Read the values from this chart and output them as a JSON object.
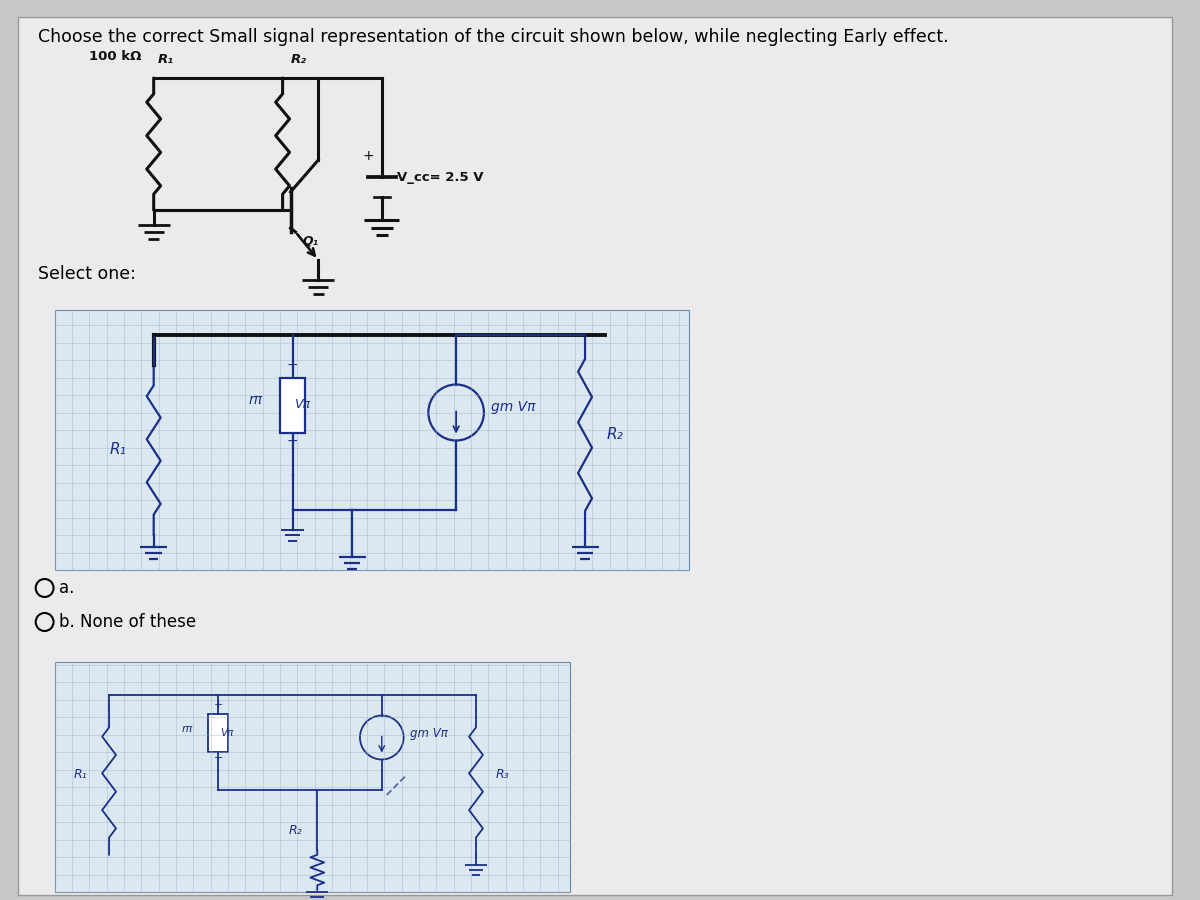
{
  "title": "Choose the correct Small signal representation of the circuit shown below, while neglecting Early effect.",
  "bg_color": "#c8c8c8",
  "panel_color": "#e8e8e8",
  "text_color": "#000000",
  "select_one": "Select one:",
  "option_a_label": "a.",
  "option_b_label": "b. None of these",
  "vcc_label": "V_cc= 2.5 V",
  "r1_label": "R₁",
  "r2_label": "R₂",
  "r1_val": "100 kΩ",
  "q1_label": "Q₁",
  "circuit_color": "#111111",
  "grid_color": "#9bb0cc",
  "grid_bg": "#dce8f0",
  "sketch_color": "#1a2f88",
  "sketch_lw": 1.6,
  "top_circuit_color": "#111111"
}
